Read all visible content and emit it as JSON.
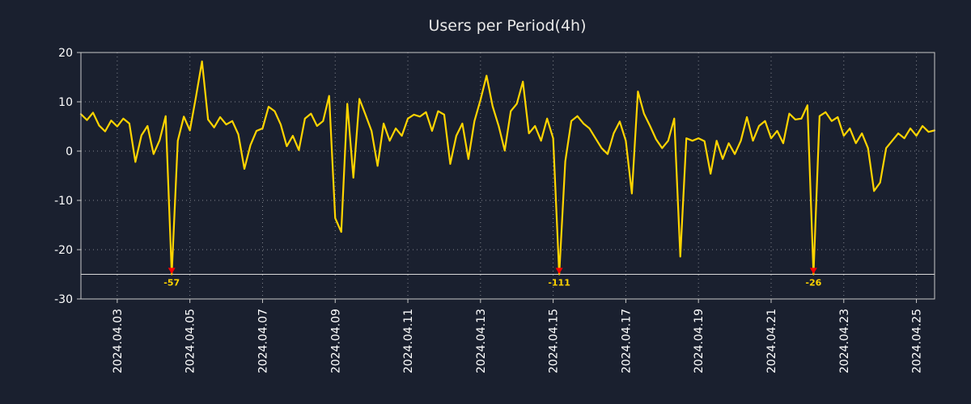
{
  "chart_data": {
    "type": "line",
    "title": "Users per Period(4h)",
    "xlabel": "",
    "ylabel": "",
    "ylim": [
      -30,
      20
    ],
    "y_ticks": [
      20,
      10,
      0,
      -10,
      -20,
      -30
    ],
    "clip_y": -25,
    "grid": true,
    "legend": "none",
    "colors": {
      "background": "#1a202f",
      "line": "#ffd400",
      "marker": "#ff0000",
      "annotation_text": "#ffd400",
      "grid": "#ffffff",
      "border": "#c8c8c8",
      "tick_text": "#ffffff",
      "clip_line": "#d8d8d8"
    },
    "x_tick_labels": [
      "2024.04.03",
      "2024.04.05",
      "2024.04.07",
      "2024.04.09",
      "2024.04.11",
      "2024.04.13",
      "2024.04.15",
      "2024.04.17",
      "2024.04.19",
      "2024.04.21",
      "2024.04.23",
      "2024.04.25"
    ],
    "x_tick_start_index": 6,
    "x_tick_step": 12,
    "period_hours": 4,
    "values": [
      7.5,
      6.3,
      7.8,
      5.2,
      4.0,
      6.2,
      5.0,
      6.6,
      5.6,
      -2.2,
      3.2,
      5.1,
      -0.6,
      2.2,
      7.1,
      -57,
      2.1,
      7.0,
      4.2,
      11.0,
      18.2,
      6.4,
      4.8,
      6.9,
      5.4,
      6.1,
      3.4,
      -3.6,
      1.2,
      4.1,
      4.6,
      9.0,
      8.1,
      5.4,
      1.0,
      3.1,
      0.2,
      6.6,
      7.6,
      5.1,
      6.1,
      11.2,
      -13.6,
      -16.4,
      9.6,
      -5.4,
      10.6,
      7.4,
      4.1,
      -3.0,
      5.6,
      2.1,
      4.6,
      3.1,
      6.6,
      7.4,
      7.0,
      7.9,
      4.1,
      8.1,
      7.4,
      -2.6,
      3.1,
      5.6,
      -1.6,
      6.1,
      10.4,
      15.3,
      9.1,
      5.1,
      0.1,
      8.1,
      9.6,
      14.1,
      3.6,
      5.1,
      2.1,
      6.6,
      2.6,
      -111,
      -2.1,
      6.1,
      7.1,
      5.6,
      4.6,
      2.6,
      0.6,
      -0.6,
      3.6,
      6.0,
      2.1,
      -8.6,
      12.1,
      7.6,
      5.1,
      2.4,
      0.6,
      2.1,
      6.6,
      -21.4,
      2.6,
      2.1,
      2.6,
      2.0,
      -4.6,
      2.1,
      -1.6,
      1.6,
      -0.6,
      2.1,
      6.9,
      2.1,
      5.1,
      6.1,
      2.6,
      4.1,
      1.6,
      7.6,
      6.4,
      6.6,
      9.3,
      -26,
      7.1,
      7.9,
      6.1,
      6.9,
      3.1,
      4.6,
      1.6,
      3.6,
      0.6,
      -8.1,
      -6.4,
      0.6,
      2.1,
      3.6,
      2.6,
      4.6,
      3.1,
      5.1,
      3.9,
      4.2
    ],
    "annotations": [
      {
        "index": 15,
        "label": "-57"
      },
      {
        "index": 79,
        "label": "-111"
      },
      {
        "index": 121,
        "label": "-26"
      }
    ]
  }
}
